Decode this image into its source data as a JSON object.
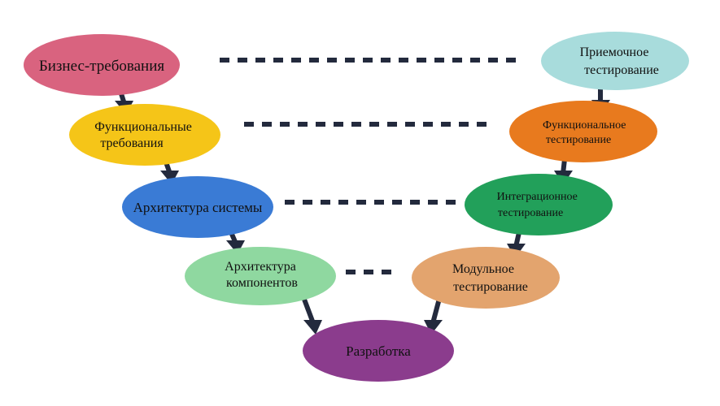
{
  "nodes": {
    "business_requirements": {
      "label": "Бизнес-требования",
      "color": "#d9637f"
    },
    "functional_requirements": {
      "line1": "Функциональные",
      "line2": "требования",
      "color": "#f5c518"
    },
    "system_architecture": {
      "label": "Архитектура системы",
      "color": "#3a7bd5"
    },
    "component_architecture": {
      "line1": "Архитектура",
      "line2": "компонентов",
      "color": "#8fd8a0"
    },
    "development": {
      "label": "Разработка",
      "color": "#8b3c8d"
    },
    "unit_testing": {
      "line1": "Модульное",
      "line2": "тестирование",
      "color": "#e3a46e"
    },
    "integration_testing": {
      "line1": "Интеграционное",
      "line2": "тестирование",
      "color": "#22a05a"
    },
    "functional_testing": {
      "line1": "Функциональное",
      "line2": "тестирование",
      "color": "#e87a1e"
    },
    "acceptance_testing": {
      "line1": "Приемочное",
      "line2": "тестирование",
      "color": "#a8dcdc"
    }
  },
  "colors": {
    "connector": "#232a3d"
  }
}
